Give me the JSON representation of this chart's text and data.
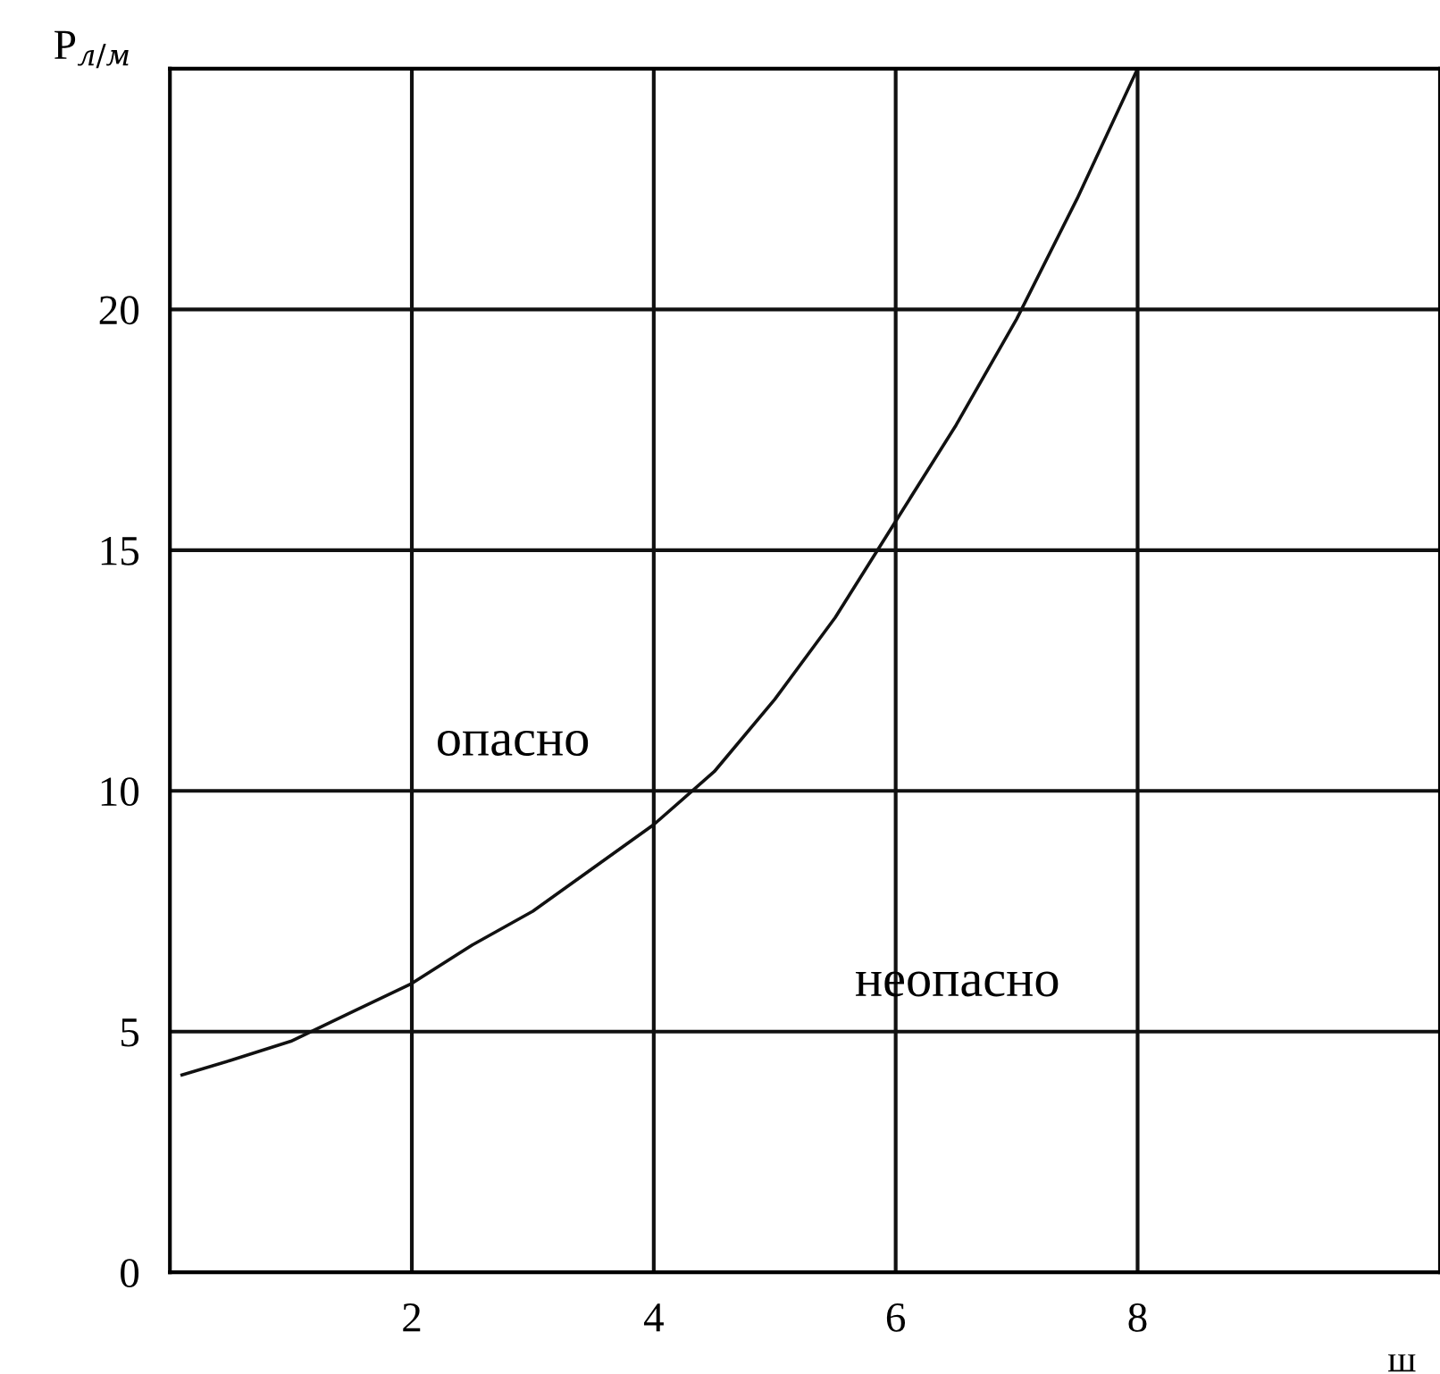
{
  "chart_data": {
    "type": "line",
    "ylabel": "P$_{л/м}$",
    "xlabel": "ш",
    "x": [
      0.1,
      0.5,
      1,
      1.5,
      2,
      2.5,
      3,
      3.5,
      4,
      4.5,
      5,
      5.5,
      6,
      6.5,
      7,
      7.5,
      8
    ],
    "series": [
      {
        "color": "#111111",
        "values": [
          4.1,
          4.4,
          4.8,
          5.4,
          6.0,
          6.8,
          7.5,
          8.4,
          9.3,
          10.4,
          11.9,
          13.6,
          15.6,
          17.6,
          19.8,
          22.3,
          25
        ]
      }
    ],
    "xlim": [
      0,
      10.5
    ],
    "xticks": [
      2,
      4,
      6,
      8
    ],
    "ylim": [
      0,
      25
    ],
    "yticks": [
      0,
      5,
      10,
      15,
      20
    ],
    "grid": true,
    "marker": "none",
    "line_style": "solid",
    "annotations": [
      "опасно",
      "неопасно"
    ]
  }
}
